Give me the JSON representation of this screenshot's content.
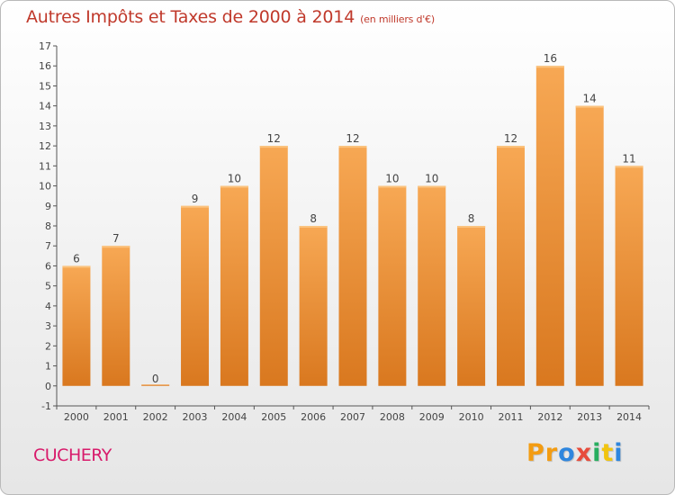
{
  "header": {
    "title": "Autres Impôts et Taxes de 2000 à 2014",
    "unit": "(en milliers d'€)"
  },
  "footer": {
    "place": "CUCHERY",
    "logo": [
      "P",
      "r",
      "o",
      "x",
      "i",
      "t",
      "i"
    ]
  },
  "colors": {
    "title": "#c0392b",
    "place": "#d81b6b",
    "bar_light": "#f7a854",
    "bar_dark": "#d9781f",
    "logo": [
      "#f39c12",
      "#f39c12",
      "#2e86de",
      "#e74c3c",
      "#27ae60",
      "#f1c40f",
      "#2e86de"
    ]
  },
  "chart_data": {
    "type": "bar",
    "categories": [
      "2000",
      "2001",
      "2002",
      "2003",
      "2004",
      "2005",
      "2006",
      "2007",
      "2008",
      "2009",
      "2010",
      "2011",
      "2012",
      "2013",
      "2014"
    ],
    "values": [
      6,
      7,
      0,
      9,
      10,
      12,
      8,
      12,
      10,
      10,
      8,
      12,
      16,
      14,
      11
    ],
    "ylim": [
      -1,
      17
    ],
    "yticks": [
      -1,
      0,
      1,
      2,
      3,
      4,
      5,
      6,
      7,
      8,
      9,
      10,
      11,
      12,
      13,
      14,
      15,
      16,
      17
    ],
    "grid": false,
    "data_labels": true
  }
}
